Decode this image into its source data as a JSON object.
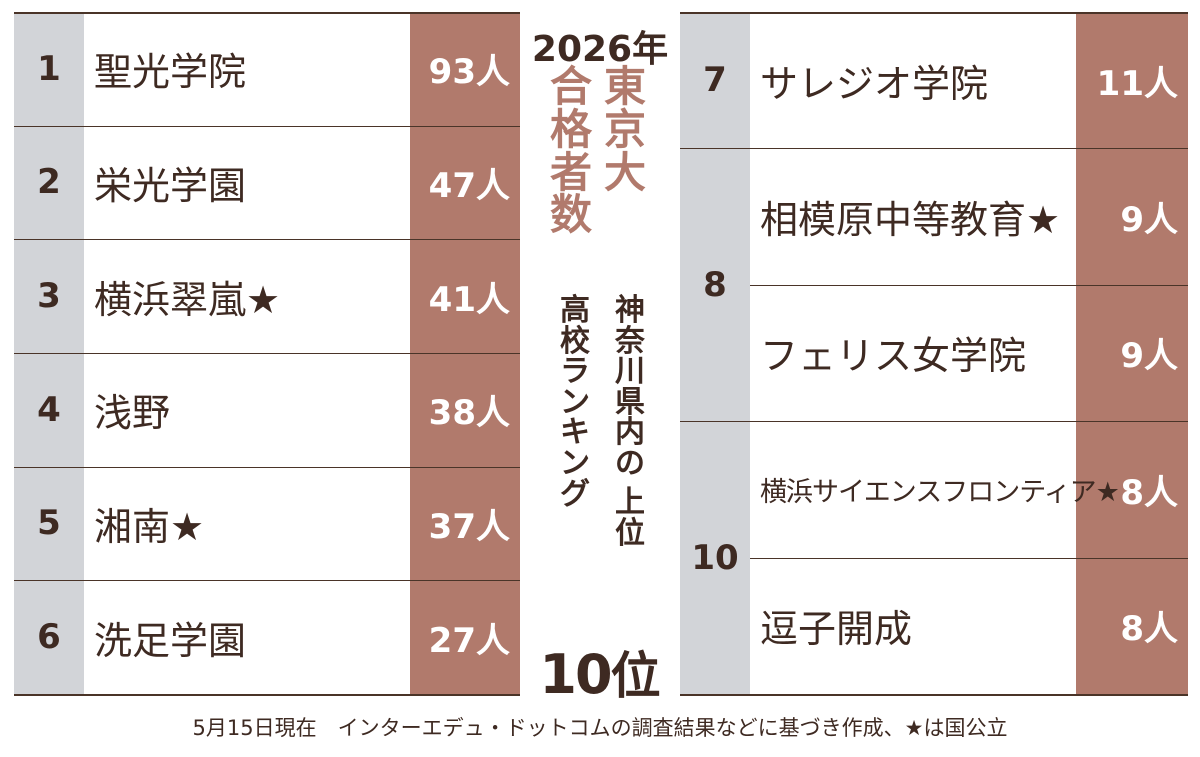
{
  "chart_data": {
    "type": "table",
    "title_year": "2026年",
    "title_main": "東京大合格者数",
    "title_sub_line1": "神奈川県内の",
    "title_sub_line2": "高校ランキング",
    "title_sub_line3": "上位",
    "title_top": "10位",
    "rows": [
      {
        "rank": "1",
        "school": "聖光学院",
        "count": "93人"
      },
      {
        "rank": "2",
        "school": "栄光学園",
        "count": "47人"
      },
      {
        "rank": "3",
        "school": "横浜翠嵐★",
        "count": "41人"
      },
      {
        "rank": "4",
        "school": "浅野",
        "count": "38人"
      },
      {
        "rank": "5",
        "school": "湘南★",
        "count": "37人"
      },
      {
        "rank": "6",
        "school": "洗足学園",
        "count": "27人"
      },
      {
        "rank": "7",
        "school": "サレジオ学院",
        "count": "11人"
      },
      {
        "rank": "8",
        "school": "相模原中等教育★",
        "count": "9人"
      },
      {
        "rank": "",
        "school": "フェリス女学院",
        "count": "9人"
      },
      {
        "rank": "10",
        "school": "横浜サイエンスフロンティア★",
        "count": "8人"
      },
      {
        "rank": "",
        "school": "逗子開成",
        "count": "8人"
      }
    ],
    "values": [
      93,
      47,
      41,
      38,
      37,
      27,
      11,
      9,
      9,
      8,
      8
    ],
    "footnote": "5月15日現在　インターエデュ・ドットコムの調査結果などに基づき作成、★は国公立"
  },
  "colors": {
    "text": "#3e2a22",
    "accent": "#b17a6c",
    "rank_column": "#d2d4d8",
    "background": "#ffffff"
  }
}
